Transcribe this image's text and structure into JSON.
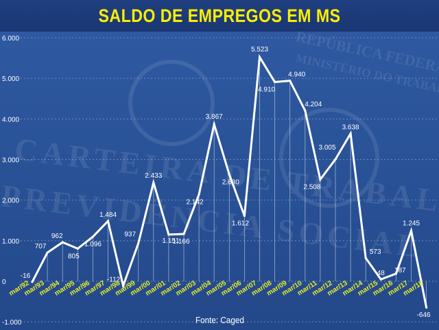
{
  "title": "SALDO DE EMPREGOS EM MS",
  "source": "Fonte: Caged",
  "colors": {
    "background": "#2a5398",
    "title_bar": "#1c3a78",
    "title_text": "#ffee00",
    "line": "#ffffff",
    "grid": "#7f9ccc",
    "x_tick_text": "#e7ec2a"
  },
  "chart_data": {
    "type": "line",
    "title": "SALDO DE EMPREGOS EM MS",
    "xlabel": "",
    "ylabel": "",
    "ylim": [
      -1000,
      6000
    ],
    "grid": true,
    "yticks": [
      "-1.000",
      "0",
      "1.000",
      "2.000",
      "3.000",
      "4.000",
      "5.000",
      "6.000"
    ],
    "categories": [
      "mar/92",
      "mar/93",
      "mar/94",
      "mar/95",
      "mar/96",
      "mar/97",
      "mar/98",
      "mar/99",
      "mar/00",
      "mar/01",
      "mar/02",
      "mar/03",
      "mar/04",
      "mar/05",
      "mar/06",
      "mar/07",
      "mar/08",
      "mar/09",
      "mar/10",
      "mar/11",
      "mar/12",
      "mar/13",
      "mar/14",
      "mar/15",
      "mar/16",
      "mar/17",
      "mar/18"
    ],
    "values": [
      -16,
      707,
      962,
      805,
      1096,
      1484,
      -112,
      937,
      2433,
      1151,
      1166,
      2142,
      3867,
      2630,
      1612,
      5523,
      4910,
      4940,
      4204,
      2508,
      3005,
      3638,
      573,
      48,
      187,
      1245,
      -646
    ],
    "data_labels": [
      "-16",
      "707",
      "962",
      "805",
      "1.096",
      "1.484",
      "-112",
      "937",
      "2.433",
      "1.151",
      "1.166",
      "2.142",
      "3.867",
      "2.630",
      "1.612",
      "5.523",
      "4.910",
      "4.940",
      "4.204",
      "2.508",
      "3.005",
      "3.638",
      "573",
      "48",
      "187",
      "1.245",
      "-646"
    ]
  }
}
